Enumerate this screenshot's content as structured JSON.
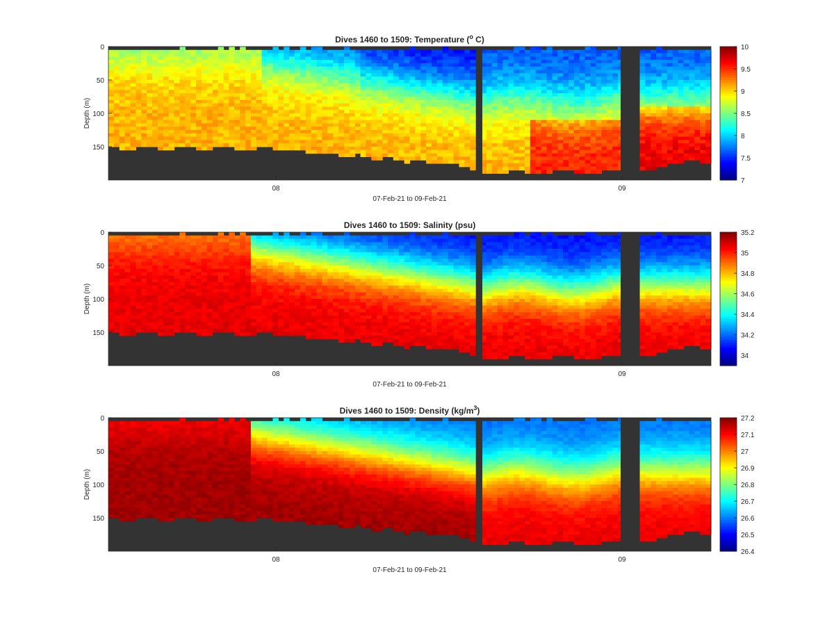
{
  "chart_data": [
    {
      "type": "heatmap",
      "title_prefix": "Dives 1460 to 1509: Temperature (",
      "title_sup": "o",
      "title_suffix": " C)",
      "ylabel": "Depth (m)",
      "xlabel": "07-Feb-21 to 09-Feb-21",
      "x_ticks": [
        "08",
        "09"
      ],
      "y_ticks": [
        "0",
        "50",
        "100",
        "150"
      ],
      "ylim": [
        0,
        200
      ],
      "colorbar_ticks": [
        "10",
        "9.5",
        "9",
        "8.5",
        "8",
        "7.5",
        "7"
      ],
      "clim": [
        7,
        10
      ],
      "colormap": "jet",
      "variable": "temperature",
      "bottom_color": "#333333"
    },
    {
      "type": "heatmap",
      "title_prefix": "Dives 1460 to 1509: Salinity (psu)",
      "title_sup": "",
      "title_suffix": "",
      "ylabel": "Depth (m)",
      "xlabel": "07-Feb-21 to 09-Feb-21",
      "x_ticks": [
        "08",
        "09"
      ],
      "y_ticks": [
        "0",
        "50",
        "100",
        "150"
      ],
      "ylim": [
        0,
        200
      ],
      "colorbar_ticks": [
        "35.2",
        "35",
        "34.8",
        "34.6",
        "34.4",
        "34.2",
        "34"
      ],
      "clim": [
        33.9,
        35.2
      ],
      "colormap": "jet",
      "variable": "salinity",
      "bottom_color": "#333333"
    },
    {
      "type": "heatmap",
      "title_prefix": "Dives 1460 to 1509: Density (kg/m",
      "title_sup": "3",
      "title_suffix": ")",
      "ylabel": "Depth (m)",
      "xlabel": "07-Feb-21 to 09-Feb-21",
      "x_ticks": [
        "08",
        "09"
      ],
      "y_ticks": [
        "0",
        "50",
        "100",
        "150"
      ],
      "ylim": [
        0,
        200
      ],
      "colorbar_ticks": [
        "27.2",
        "27.1",
        "27",
        "26.9",
        "26.8",
        "26.7",
        "26.6",
        "26.5",
        "26.4"
      ],
      "clim": [
        26.4,
        27.2
      ],
      "colormap": "jet",
      "variable": "density",
      "bottom_color": "#333333"
    }
  ]
}
